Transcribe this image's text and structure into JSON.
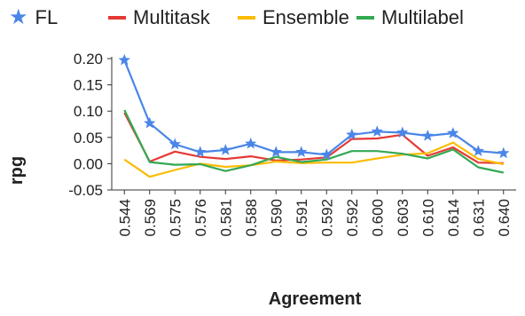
{
  "chart_data": {
    "type": "line",
    "title": "",
    "xlabel": "Agreement",
    "ylabel": "rpg",
    "categories": [
      "0.544",
      "0.569",
      "0.575",
      "0.576",
      "0.581",
      "0.588",
      "0.590",
      "0.591",
      "0.592",
      "0.592",
      "0.600",
      "0.603",
      "0.610",
      "0.614",
      "0.631",
      "0.640"
    ],
    "ylim": [
      -0.05,
      0.2
    ],
    "yticks": [
      "0.20",
      "0.15",
      "0.10",
      "0.05",
      "0.00",
      "-0.05"
    ],
    "ytick_values": [
      0.2,
      0.15,
      0.1,
      0.05,
      0.0,
      -0.05
    ],
    "grid": false,
    "legend_position": "top",
    "series": [
      {
        "name": "FL",
        "color": "#4a86e8",
        "marker": "star",
        "values": [
          0.197,
          0.077,
          0.037,
          0.022,
          0.026,
          0.038,
          0.022,
          0.022,
          0.017,
          0.055,
          0.061,
          0.059,
          0.053,
          0.058,
          0.024,
          0.02
        ]
      },
      {
        "name": "Multitask",
        "color": "#e53935",
        "marker": "none",
        "values": [
          0.097,
          0.004,
          0.023,
          0.013,
          0.009,
          0.014,
          0.006,
          0.008,
          0.012,
          0.047,
          0.048,
          0.055,
          0.015,
          0.031,
          0.002,
          0.001
        ]
      },
      {
        "name": "Ensemble",
        "color": "#fbbc04",
        "marker": "none",
        "values": [
          0.008,
          -0.025,
          -0.012,
          0.0,
          -0.006,
          -0.003,
          0.004,
          0.001,
          0.002,
          0.002,
          0.01,
          0.017,
          0.02,
          0.04,
          0.009,
          -0.001
        ]
      },
      {
        "name": "Multilabel",
        "color": "#34a853",
        "marker": "none",
        "values": [
          0.102,
          0.003,
          -0.002,
          -0.001,
          -0.014,
          -0.003,
          0.013,
          0.003,
          0.008,
          0.024,
          0.024,
          0.019,
          0.01,
          0.027,
          -0.007,
          -0.017
        ]
      }
    ]
  }
}
